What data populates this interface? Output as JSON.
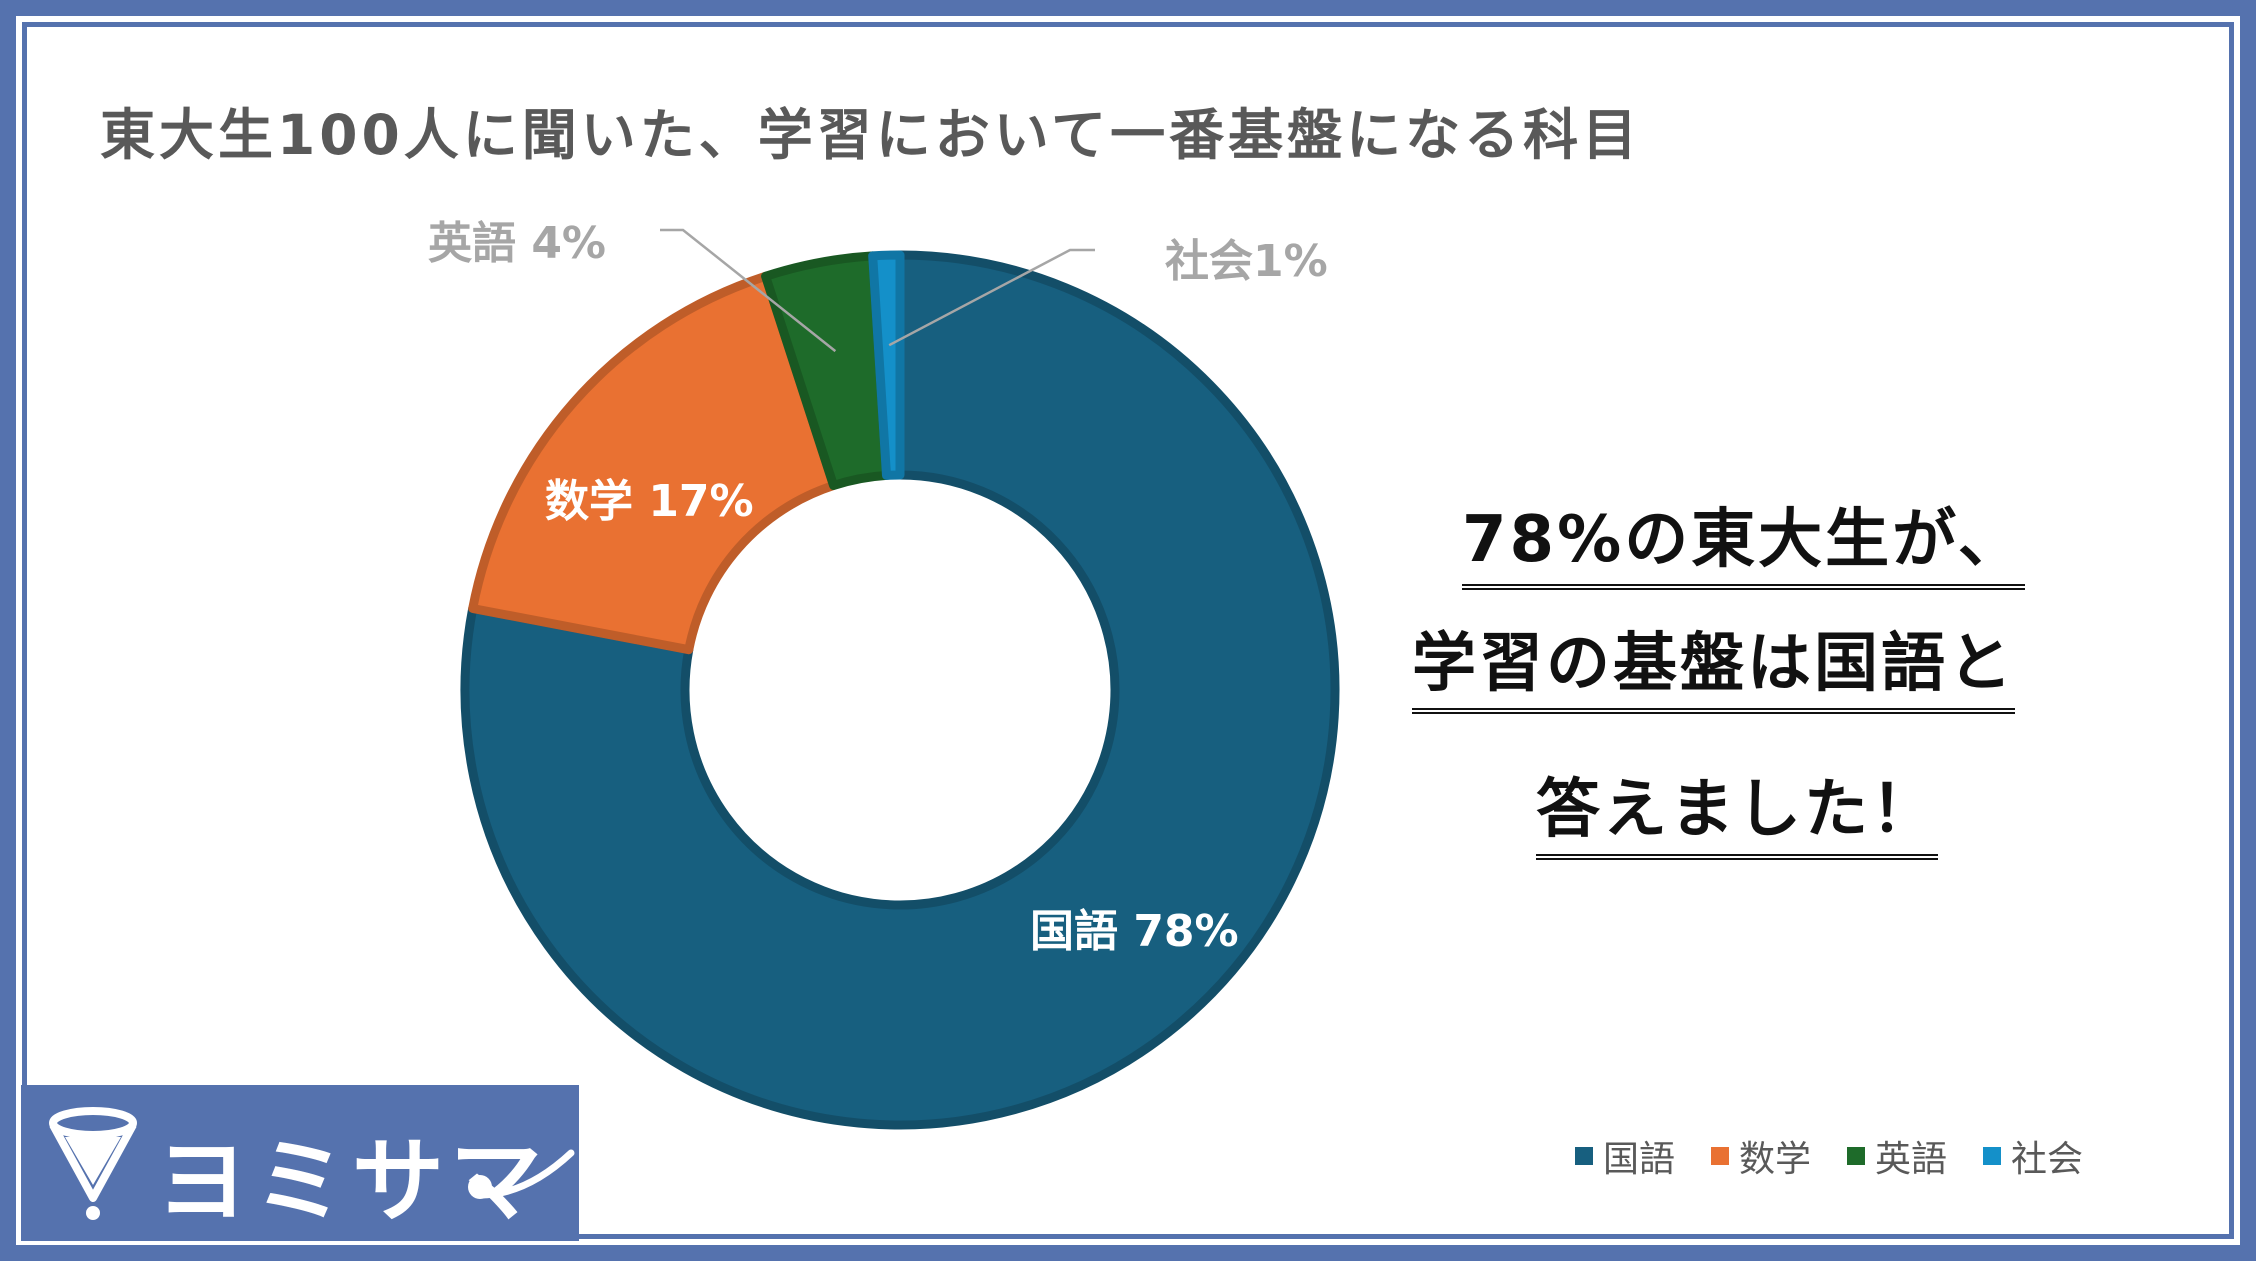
{
  "title": "東大生100人に聞いた、学習において一番基盤になる科目",
  "chart_data": {
    "type": "pie",
    "variant": "donut",
    "categories": [
      "国語",
      "数学",
      "英語",
      "社会"
    ],
    "values": [
      78,
      17,
      4,
      1
    ],
    "unit": "%",
    "colors": [
      "#175f7f",
      "#e97132",
      "#1e6b2a",
      "#1490c9"
    ],
    "data_labels": [
      "国語 78%",
      "数学 17%",
      "英語 4%",
      "社会1%"
    ],
    "legend": {
      "placement": "bottom-right",
      "entries": [
        "国語",
        "数学",
        "英語",
        "社会"
      ]
    }
  },
  "message": {
    "line1": "78%の東大生が、",
    "line2": "学習の基盤は国語と",
    "line3": "答えました！"
  },
  "logo": {
    "text": "ヨミサマ",
    "icon": "funnel-icon"
  },
  "colors": {
    "frame": "#5572ae",
    "title_text": "#595959",
    "leader_line": "#a6a6a6"
  }
}
